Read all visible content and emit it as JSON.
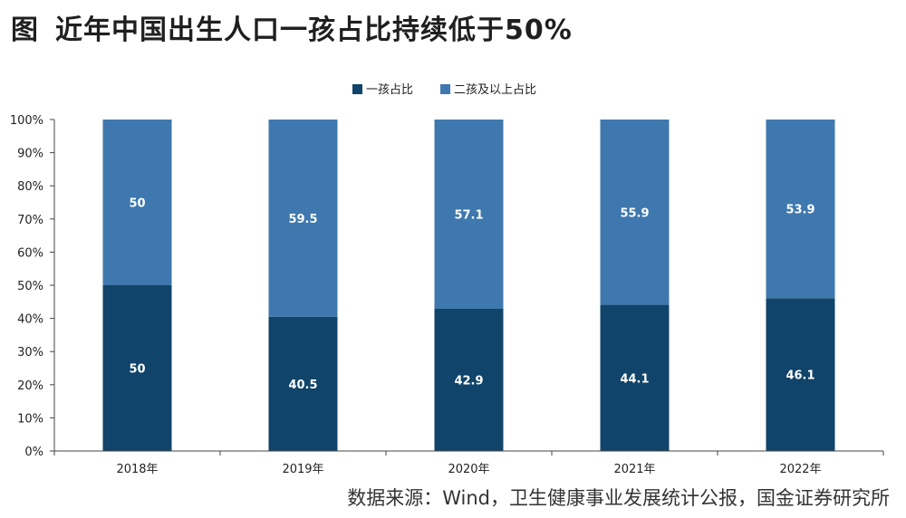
{
  "title": {
    "figure_label": "图",
    "text": "近年中国出生人口一孩占比持续低于50%"
  },
  "source": "数据来源：Wind，卫生健康事业发展统计公报，国金证券研究所",
  "colors": {
    "first_child": "#11446a",
    "second_plus": "#3f78ae",
    "axis": "#444444",
    "text": "#222222",
    "label": "#ffffff"
  },
  "chart_data": {
    "type": "bar",
    "stacked": true,
    "categories": [
      "2018年",
      "2019年",
      "2020年",
      "2021年",
      "2022年"
    ],
    "series": [
      {
        "name": "一孩占比",
        "values": [
          50,
          40.5,
          42.9,
          44.1,
          46.1
        ]
      },
      {
        "name": "二孩及以上占比",
        "values": [
          50,
          59.5,
          57.1,
          55.9,
          53.9
        ]
      }
    ],
    "data_labels": [
      [
        "50",
        "40.5",
        "42.9",
        "44.1",
        "46.1"
      ],
      [
        "50",
        "59.5",
        "57.1",
        "55.9",
        "53.9"
      ]
    ],
    "yticks": [
      "0%",
      "10%",
      "20%",
      "30%",
      "40%",
      "50%",
      "60%",
      "70%",
      "80%",
      "90%",
      "100%"
    ],
    "ylim": [
      0,
      100
    ],
    "grid": false,
    "legend_position": "top-center"
  }
}
